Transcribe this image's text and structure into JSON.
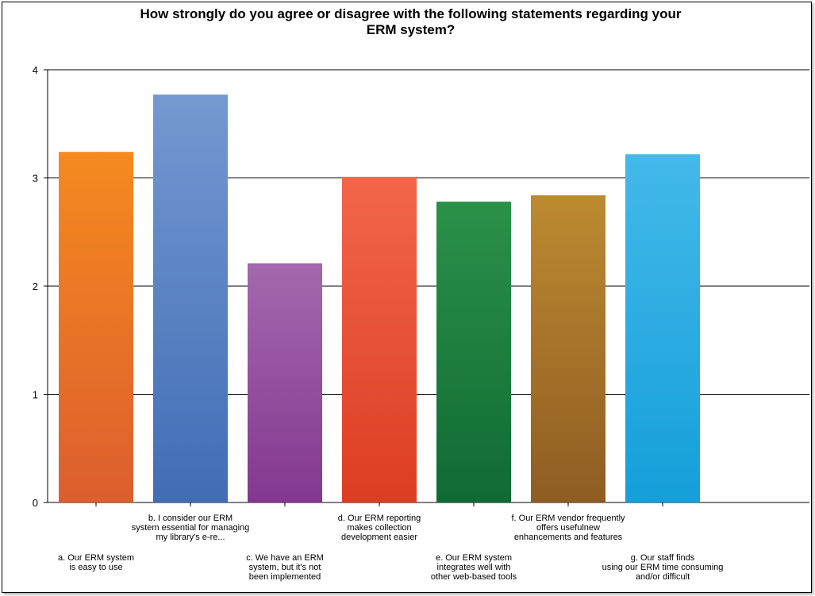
{
  "chart_data": {
    "type": "bar",
    "title_lines": [
      "How strongly do you agree or disagree with the following statements regarding your",
      "ERM system?"
    ],
    "ylim": [
      0,
      4
    ],
    "yticks": [
      "0",
      "1",
      "2",
      "3",
      "4"
    ],
    "grid": true,
    "categories": [
      {
        "lines": [
          "a. Our ERM system",
          "is easy to use"
        ],
        "row": 2,
        "value": 3.24,
        "colors": [
          "#F58A1F",
          "#DC5E2E"
        ]
      },
      {
        "lines": [
          "b. I consider our ERM",
          "system essential for managing",
          "my library's e-re..."
        ],
        "row": 1,
        "value": 3.77,
        "colors": [
          "#7399D1",
          "#416DB5"
        ]
      },
      {
        "lines": [
          "c. We have an ERM",
          "system, but it's not",
          "been implemented"
        ],
        "row": 2,
        "value": 2.21,
        "colors": [
          "#A468AE",
          "#83388F"
        ]
      },
      {
        "lines": [
          "d. Our ERM reporting",
          "makes collection",
          "development easier"
        ],
        "row": 1,
        "value": 3.01,
        "colors": [
          "#F2664A",
          "#DC3D22"
        ]
      },
      {
        "lines": [
          "e. Our ERM system",
          "integrates well with",
          "other web-based tools"
        ],
        "row": 2,
        "value": 2.78,
        "colors": [
          "#2B9148",
          "#106A34"
        ]
      },
      {
        "lines": [
          "f. Our ERM vendor frequently",
          "offers usefulnew",
          "enhancements and features"
        ],
        "row": 1,
        "value": 2.84,
        "colors": [
          "#BD8A31",
          "#8E5D22"
        ]
      },
      {
        "lines": [
          "g. Our staff finds",
          "using our ERM time consuming",
          "and/or difficult"
        ],
        "row": 2,
        "value": 3.22,
        "colors": [
          "#44B9EA",
          "#149FD9"
        ]
      }
    ]
  }
}
